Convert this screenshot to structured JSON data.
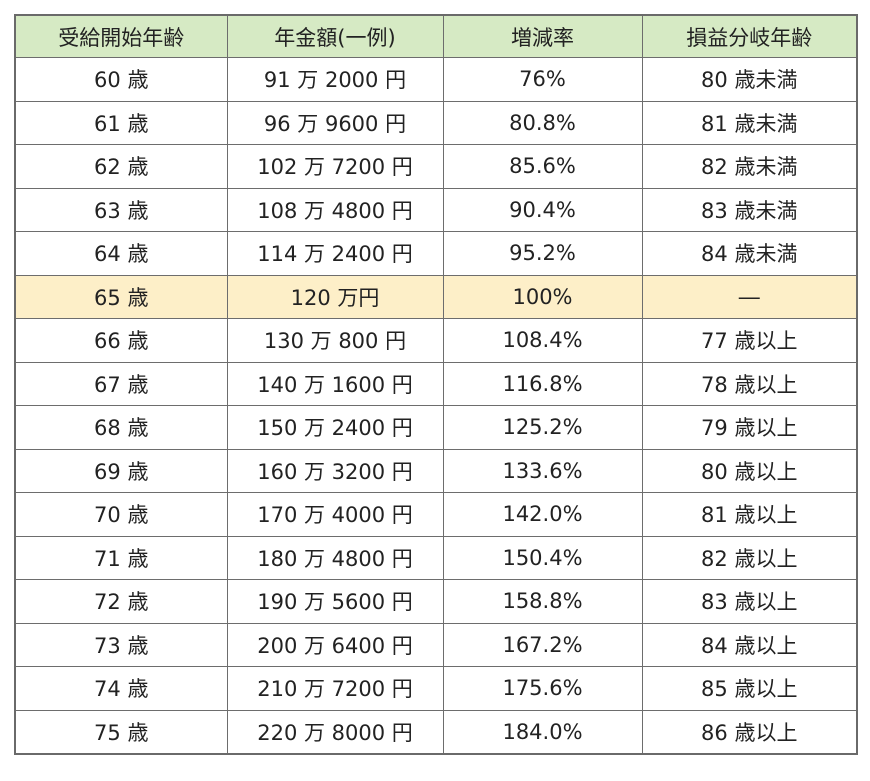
{
  "colors": {
    "header_bg": "#d6eac4",
    "highlight_bg": "#fdefc8",
    "border": "#6d6d6d"
  },
  "table": {
    "headers": [
      "受給開始年齢",
      "年金額(一例)",
      "増減率",
      "損益分岐年齢"
    ],
    "highlight_row_index": 5,
    "rows": [
      [
        "60 歳",
        "91 万 2000 円",
        "76%",
        "80 歳未満"
      ],
      [
        "61 歳",
        "96 万 9600 円",
        "80.8%",
        "81 歳未満"
      ],
      [
        "62 歳",
        "102 万 7200 円",
        "85.6%",
        "82 歳未満"
      ],
      [
        "63 歳",
        "108 万 4800 円",
        "90.4%",
        "83 歳未満"
      ],
      [
        "64 歳",
        "114 万 2400 円",
        "95.2%",
        "84 歳未満"
      ],
      [
        "65 歳",
        "120 万円",
        "100%",
        "―"
      ],
      [
        "66 歳",
        "130 万 800 円",
        "108.4%",
        "77 歳以上"
      ],
      [
        "67 歳",
        "140 万 1600 円",
        "116.8%",
        "78 歳以上"
      ],
      [
        "68 歳",
        "150 万 2400 円",
        "125.2%",
        "79 歳以上"
      ],
      [
        "69 歳",
        "160 万 3200 円",
        "133.6%",
        "80 歳以上"
      ],
      [
        "70 歳",
        "170 万 4000 円",
        "142.0%",
        "81 歳以上"
      ],
      [
        "71 歳",
        "180 万 4800 円",
        "150.4%",
        "82 歳以上"
      ],
      [
        "72 歳",
        "190 万 5600 円",
        "158.8%",
        "83 歳以上"
      ],
      [
        "73 歳",
        "200 万 6400 円",
        "167.2%",
        "84 歳以上"
      ],
      [
        "74 歳",
        "210 万 7200 円",
        "175.6%",
        "85 歳以上"
      ],
      [
        "75 歳",
        "220 万 8000 円",
        "184.0%",
        "86 歳以上"
      ]
    ]
  }
}
